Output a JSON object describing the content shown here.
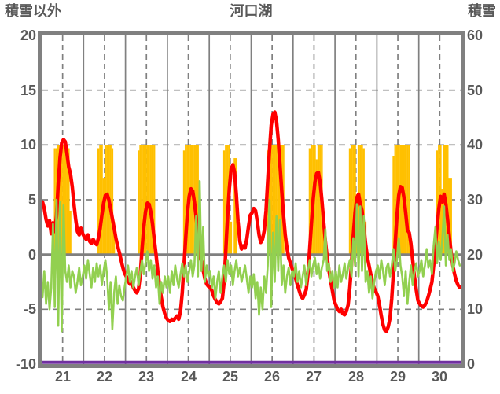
{
  "header": {
    "left_axis_label": "積雪以外",
    "title": "河口湖",
    "right_axis_label": "積雪"
  },
  "colors": {
    "background": "#FFFFFF",
    "text": "#595959",
    "border": "#808080",
    "gridline": "#808080",
    "zero_line": "#808080",
    "bar_orange": "#FFC000",
    "line_red": "#FF0000",
    "line_green": "#92D050",
    "line_purple": "#7030A0"
  },
  "chart_data": {
    "type": "line",
    "title": "河口湖",
    "subtitle": "",
    "legend": "none",
    "x_axis": {
      "day_labels": [
        "21",
        "22",
        "23",
        "24",
        "25",
        "26",
        "27",
        "28",
        "29",
        "30"
      ],
      "hours_per_day": 24,
      "gridlines": "solid at day boundaries, dashed at day midpoints"
    },
    "left_axis": {
      "label": "積雪以外",
      "min": -10,
      "max": 20,
      "ticks": [
        20,
        15,
        10,
        5,
        0,
        -5,
        -10
      ]
    },
    "right_axis": {
      "label": "積雪",
      "min": 0,
      "max": 60,
      "ticks": [
        60,
        50,
        40,
        30,
        20,
        10,
        0
      ]
    },
    "series": [
      {
        "name": "orange_bars",
        "type": "bar",
        "axis": "left",
        "color": "#FFC000",
        "values_by_day": [
          [
            0,
            0,
            0,
            0,
            0,
            0,
            0,
            9.7,
            9.7,
            10,
            10,
            10,
            10,
            10,
            9.7,
            9.7,
            4,
            0,
            0,
            0,
            0,
            0,
            0,
            0
          ],
          [
            0,
            0,
            0,
            0,
            0,
            0,
            0,
            0,
            9.7,
            10,
            10,
            7,
            10,
            10,
            10,
            10,
            9.7,
            3,
            0,
            0,
            0,
            0,
            0,
            0
          ],
          [
            0,
            0,
            0,
            0,
            0,
            0,
            0,
            9.5,
            10,
            10,
            10,
            10,
            10,
            10,
            10,
            10,
            10,
            0,
            0,
            0,
            0,
            0,
            0,
            0
          ],
          [
            0,
            0,
            0,
            0,
            0,
            0,
            0,
            0,
            0,
            9.5,
            10,
            10,
            10,
            10,
            10,
            10,
            10,
            10,
            2,
            0,
            0,
            0,
            0,
            0
          ],
          [
            0,
            0,
            0,
            0,
            0,
            0,
            0,
            0,
            9.5,
            10,
            10,
            10,
            3,
            0,
            8.8,
            8.8,
            0,
            0,
            0,
            0,
            0,
            0,
            0,
            0
          ],
          [
            0,
            0,
            0,
            0,
            0,
            0,
            0,
            0,
            0,
            9.5,
            10,
            10,
            10,
            10,
            10,
            10,
            10,
            10,
            10,
            0,
            0,
            0,
            0,
            0
          ],
          [
            0,
            0,
            0,
            0,
            0,
            0,
            0,
            0,
            0,
            9.7,
            10,
            10,
            10,
            8.7,
            10,
            10,
            10,
            4,
            0,
            0,
            0,
            0,
            0,
            0
          ],
          [
            0,
            0,
            0,
            0,
            0,
            0,
            0,
            0,
            9.7,
            10,
            10,
            10,
            5.5,
            10,
            10,
            10,
            9.7,
            3,
            0,
            0,
            0,
            0,
            0,
            0
          ],
          [
            0,
            0,
            0,
            0,
            0,
            0,
            0,
            0,
            0,
            9,
            10,
            10,
            10,
            10,
            10,
            10,
            10,
            10,
            10,
            0,
            0,
            0,
            0,
            0
          ],
          [
            0,
            0,
            0,
            0,
            0,
            0,
            0,
            0,
            0,
            0,
            9.5,
            10,
            10,
            6,
            10,
            10,
            10,
            7,
            7,
            0,
            0,
            0,
            0,
            0
          ]
        ]
      },
      {
        "name": "purple_line",
        "type": "line",
        "axis": "right",
        "color": "#7030A0",
        "stroke_width": 4,
        "constant_value": 0
      },
      {
        "name": "red_line",
        "type": "line",
        "axis": "left",
        "color": "#FF0000",
        "stroke_width": 4.5,
        "values_by_day": [
          [
            4.8,
            4.2,
            3.2,
            2.6,
            3.1,
            1.9,
            2.9,
            2.1,
            3.5,
            6.5,
            8.8,
            10.2,
            10.5,
            10.3,
            9.2,
            8.0,
            7.4,
            6.2,
            4.6,
            3.2,
            2.1,
            1.8,
            2.4,
            1.9
          ],
          [
            1.6,
            1.4,
            1.8,
            1.2,
            1.0,
            1.4,
            1.1,
            0.9,
            1.5,
            2.4,
            3.6,
            4.7,
            5.4,
            5.5,
            5.0,
            4.2,
            3.3,
            2.4,
            1.5,
            0.8,
            0.2,
            -0.5,
            -1.2,
            -1.7
          ],
          [
            -2.0,
            -2.4,
            -2.7,
            -2.5,
            -3.0,
            -3.3,
            -3.5,
            -3.1,
            -1.8,
            0.5,
            2.5,
            3.9,
            4.7,
            4.6,
            3.9,
            2.8,
            1.4,
            0.0,
            -1.5,
            -2.8,
            -3.9,
            -4.8,
            -5.4,
            -5.8
          ],
          [
            -6.0,
            -6.1,
            -5.9,
            -6.0,
            -5.8,
            -5.6,
            -5.9,
            -5.2,
            -3.5,
            -1.0,
            1.5,
            3.8,
            5.3,
            6.0,
            5.8,
            4.8,
            3.4,
            1.8,
            0.4,
            -0.6,
            -1.4,
            -2.2,
            -2.7,
            -2.9
          ],
          [
            -3.0,
            -3.3,
            -3.8,
            -4.1,
            -4.4,
            -4.5,
            -4.3,
            -4.0,
            -2.5,
            0.5,
            3.5,
            6.0,
            7.8,
            8.2,
            7.5,
            5.5,
            3.0,
            1.2,
            0.5,
            0.8,
            0.6,
            1.4,
            2.6,
            3.6
          ],
          [
            3.8,
            4.2,
            4.0,
            3.0,
            1.8,
            1.1,
            1.4,
            2.2,
            4.0,
            6.8,
            9.5,
            11.8,
            12.8,
            13.0,
            12.2,
            10.5,
            8.2,
            5.8,
            3.6,
            1.8,
            0.6,
            -0.3,
            -0.8,
            -1.3
          ],
          [
            -1.7,
            -2.2,
            -2.8,
            -3.3,
            -3.8,
            -4.0,
            -3.7,
            -3.2,
            -1.8,
            0.5,
            2.8,
            5.0,
            6.6,
            7.4,
            7.5,
            6.6,
            5.0,
            3.0,
            1.2,
            -0.2,
            -1.4,
            -2.4,
            -3.3,
            -4.2
          ],
          [
            -4.6,
            -5.0,
            -5.2,
            -5.0,
            -5.4,
            -5.5,
            -5.2,
            -4.6,
            -3.0,
            -0.8,
            1.8,
            3.8,
            5.2,
            5.5,
            4.6,
            4.0,
            2.6,
            1.0,
            -0.2,
            -1.0,
            -1.8,
            -2.6,
            -3.1,
            -3.4
          ],
          [
            -3.8,
            -4.6,
            -5.6,
            -6.4,
            -6.9,
            -7.0,
            -6.6,
            -5.8,
            -4.0,
            -1.5,
            1.0,
            3.5,
            5.4,
            6.2,
            6.1,
            5.2,
            3.8,
            2.2,
            2.0,
            1.0,
            -0.5,
            -2.0,
            -3.2,
            -4.2
          ],
          [
            -4.5,
            -4.7,
            -4.8,
            -4.6,
            -4.3,
            -3.8,
            -3.2,
            -2.5,
            -1.0,
            0.8,
            2.6,
            4.2,
            5.3,
            4.8,
            5.5,
            4.6,
            3.2,
            1.6,
            0.2,
            -1.0,
            -1.8,
            -2.4,
            -2.8,
            -3.0
          ]
        ]
      },
      {
        "name": "green_line",
        "type": "line",
        "axis": "left",
        "color": "#92D050",
        "stroke_width": 2.6,
        "values_by_day": [
          [
            -3.9,
            -1.5,
            -4.5,
            -2.5,
            -5.0,
            -3.0,
            2.8,
            -4.8,
            5.0,
            -6.5,
            4.8,
            -7.0,
            4.5,
            -1.5,
            -2.5,
            -1.0,
            -3.0,
            -1.5,
            -2.0,
            -3.5,
            -2.5,
            -1.2,
            -2.8,
            -2.0
          ],
          [
            -1.0,
            -2.2,
            -0.5,
            -1.8,
            -3.0,
            -1.2,
            -2.5,
            -0.8,
            -2.0,
            -1.0,
            -2.8,
            -1.5,
            -0.5,
            -2.0,
            -5.0,
            -2.5,
            -6.8,
            -3.5,
            -2.0,
            -4.5,
            -2.8,
            -3.8,
            -4.2,
            -3.0
          ],
          [
            -2.0,
            -1.0,
            -2.5,
            -1.5,
            -3.0,
            -2.0,
            -1.2,
            -2.8,
            -1.5,
            -0.5,
            -1.8,
            -0.8,
            0.3,
            -1.5,
            -0.5,
            -2.2,
            -1.0,
            -3.0,
            -2.0,
            -4.5,
            -2.5,
            -3.5,
            -2.0,
            -3.0
          ],
          [
            -2.0,
            -3.5,
            -1.5,
            -2.8,
            -1.0,
            -2.2,
            -3.0,
            -1.8,
            -0.8,
            -2.0,
            -1.0,
            -2.5,
            -1.5,
            -0.5,
            -2.0,
            -1.0,
            3.5,
            -2.0,
            6.7,
            -1.5,
            2.5,
            -2.5,
            -1.0,
            -2.0
          ],
          [
            -1.5,
            -3.0,
            -2.0,
            -4.0,
            -2.5,
            -1.5,
            -3.5,
            -2.0,
            -1.0,
            -2.5,
            -0.5,
            -1.8,
            -1.0,
            -2.8,
            -1.5,
            -0.5,
            -2.0,
            -1.2,
            -2.5,
            -1.8,
            -1.0,
            -2.2,
            -3.5,
            -2.0
          ],
          [
            -3.0,
            -1.8,
            -4.0,
            -2.5,
            -5.5,
            -3.0,
            -5.0,
            -2.0,
            -3.5,
            -1.0,
            5.0,
            -4.8,
            2.0,
            -2.5,
            3.5,
            -1.5,
            3.2,
            -2.8,
            -1.0,
            -3.5,
            -2.0,
            -1.2,
            -2.8,
            -1.5
          ],
          [
            -2.0,
            -0.8,
            -2.5,
            -1.5,
            -3.0,
            -2.0,
            -1.0,
            -2.8,
            -1.5,
            -0.5,
            -2.0,
            -1.0,
            -0.3,
            -1.8,
            -0.8,
            -2.2,
            -1.2,
            -0.5,
            2.3,
            -1.5,
            -0.8,
            -2.5,
            -1.5,
            -3.0
          ],
          [
            -1.5,
            -3.0,
            -1.0,
            -2.5,
            -1.8,
            -0.8,
            -2.2,
            -1.2,
            -0.5,
            -2.0,
            1.5,
            -1.0,
            4.6,
            -2.0,
            4.4,
            -1.5,
            3.5,
            -2.5,
            -1.5,
            -3.5,
            -2.0,
            -4.0,
            -2.5,
            -1.5
          ],
          [
            -1.0,
            -2.2,
            -0.5,
            -1.5,
            -2.8,
            -1.2,
            -0.8,
            -2.0,
            -1.0,
            0.5,
            -1.5,
            -0.5,
            1.5,
            -1.0,
            -2.0,
            -3.8,
            -1.5,
            -4.5,
            -2.5,
            -1.0,
            -2.8,
            -1.5,
            -0.8,
            -2.0
          ],
          [
            -1.5,
            -0.5,
            -2.0,
            -1.0,
            0.5,
            -1.2,
            -0.5,
            -1.8,
            0.8,
            2.5,
            -0.8,
            1.2,
            -0.5,
            1.5,
            4.4,
            -1.0,
            1.8,
            -0.5,
            0.5,
            -1.5,
            -0.8,
            0.3,
            -0.5,
            -1.0
          ]
        ]
      }
    ]
  }
}
